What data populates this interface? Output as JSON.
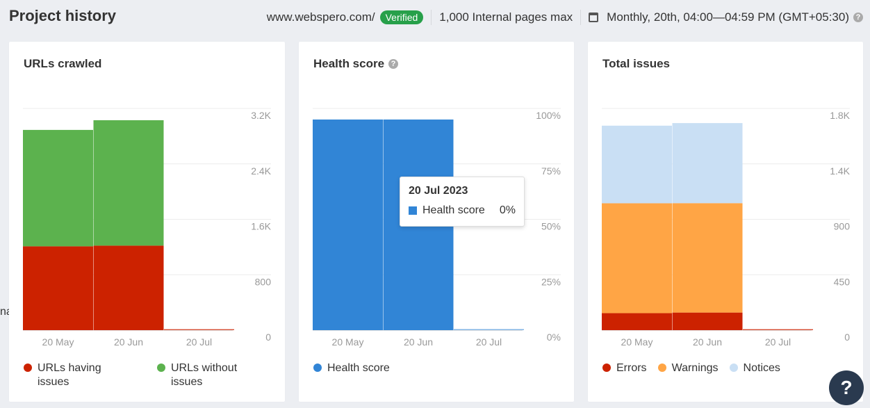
{
  "header": {
    "title": "Project history",
    "domain": "www.webspero.com/",
    "verified": "Verified",
    "pages_limit": "1,000 Internal pages max",
    "schedule": "Monthly, 20th, 04:00—04:59 PM (GMT+05:30)"
  },
  "left_clipped_text": "na",
  "tooltip": {
    "date": "20 Jul 2023",
    "series": "Health score",
    "value": "0%"
  },
  "help_button": "?",
  "icons": {
    "calendar": "calendar-icon",
    "help": "help-icon",
    "question": "question-icon"
  },
  "colors": {
    "red": "#cc2200",
    "green": "#5cb24e",
    "blue": "#3185d6",
    "orange": "#ffa545",
    "light_blue": "#c9dff4",
    "verified": "#27a04a"
  },
  "chart_data": [
    {
      "type": "bar",
      "title": "URLs crawled",
      "categories": [
        "20 May",
        "20 Jun",
        "20 Jul"
      ],
      "stacked": true,
      "ylim": [
        0,
        3200
      ],
      "yticks": [
        "0",
        "800",
        "1.6K",
        "2.4K",
        "3.2K"
      ],
      "series": [
        {
          "name": "URLs having issues",
          "color": "#cc2200",
          "values": [
            1210,
            1220,
            5
          ]
        },
        {
          "name": "URLs without issues",
          "color": "#5cb24e",
          "values": [
            1680,
            1810,
            0
          ]
        }
      ],
      "legend": [
        [
          "URLs having",
          "issues"
        ],
        [
          "URLs without",
          "issues"
        ]
      ]
    },
    {
      "type": "bar",
      "title": "Health score",
      "categories": [
        "20 May",
        "20 Jun",
        "20 Jul"
      ],
      "stacked": true,
      "ylim": [
        0,
        100
      ],
      "yticks": [
        "0%",
        "25%",
        "50%",
        "75%",
        "100%"
      ],
      "series": [
        {
          "name": "Health score",
          "color": "#3185d6",
          "values": [
            95,
            95,
            0
          ]
        }
      ],
      "legend": [
        [
          "Health score"
        ]
      ]
    },
    {
      "type": "bar",
      "title": "Total issues",
      "categories": [
        "20 May",
        "20 Jun",
        "20 Jul"
      ],
      "stacked": true,
      "ylim": [
        0,
        1800
      ],
      "yticks": [
        "0",
        "450",
        "900",
        "1.4K",
        "1.8K"
      ],
      "series": [
        {
          "name": "Errors",
          "color": "#cc2200",
          "values": [
            138,
            143,
            3
          ]
        },
        {
          "name": "Warnings",
          "color": "#ffa545",
          "values": [
            892,
            888,
            0
          ]
        },
        {
          "name": "Notices",
          "color": "#c9dff4",
          "values": [
            630,
            650,
            0
          ]
        }
      ],
      "legend": [
        [
          "Errors"
        ],
        [
          "Warnings"
        ],
        [
          "Notices"
        ]
      ]
    }
  ]
}
